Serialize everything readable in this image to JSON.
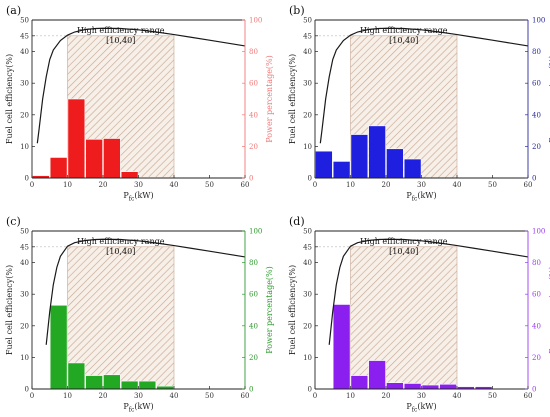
{
  "chart_data": [
    {
      "type": "bar+line",
      "panel_label": "(a)",
      "xlabel_main": "P",
      "xlabel_sub": "fc",
      "xlabel_unit": "(kW)",
      "ylabel": "Fuel cell efficiency(%)",
      "y2label": "Power percentage(%)",
      "xlim": [
        0,
        60
      ],
      "ylim": [
        0,
        50
      ],
      "y2lim": [
        0,
        100
      ],
      "xticks": [
        "0",
        "10",
        "20",
        "30",
        "40",
        "50",
        "60"
      ],
      "yticks": [
        "0",
        "10",
        "20",
        "30",
        "40",
        "45",
        "50"
      ],
      "y2ticks": [
        "0",
        "20",
        "40",
        "60",
        "80",
        "100"
      ],
      "bar_color": "#ee1c1c",
      "axis2_color": "#f07878",
      "annotation_title": "High efficiency range",
      "annotation_range": "[10,40]",
      "shade_range": [
        10,
        40
      ],
      "efficiency_curve": {
        "x": [
          1.5,
          2,
          3,
          4,
          5,
          6,
          8,
          10,
          12,
          15,
          18,
          20,
          25,
          30,
          35,
          40,
          45,
          50,
          55,
          60
        ],
        "y": [
          11,
          15.5,
          25,
          32,
          37.5,
          40.5,
          43.5,
          45.2,
          46.2,
          47,
          47.3,
          47.4,
          47.3,
          46.9,
          46.2,
          45.4,
          44.5,
          43.6,
          42.7,
          41.8
        ]
      },
      "bars": [
        {
          "x": 2.5,
          "value": 1.5
        },
        {
          "x": 7.5,
          "value": 13
        },
        {
          "x": 12.5,
          "value": 50
        },
        {
          "x": 17.5,
          "value": 24.5
        },
        {
          "x": 22.5,
          "value": 25
        },
        {
          "x": 27.5,
          "value": 4
        },
        {
          "x": 32.5,
          "value": 0.5
        },
        {
          "x": 37.5,
          "value": 0.3
        }
      ]
    },
    {
      "type": "bar+line",
      "panel_label": "(b)",
      "xlabel_main": "P",
      "xlabel_sub": "fc",
      "xlabel_unit": "(kW)",
      "ylabel": "Fuel cell efficiency(%)",
      "y2label": "Power percentage(%)",
      "xlim": [
        0,
        60
      ],
      "ylim": [
        0,
        50
      ],
      "y2lim": [
        0,
        100
      ],
      "xticks": [
        "0",
        "10",
        "20",
        "30",
        "40",
        "50",
        "60"
      ],
      "yticks": [
        "0",
        "10",
        "20",
        "30",
        "40",
        "45",
        "50"
      ],
      "y2ticks": [
        "0",
        "20",
        "40",
        "60",
        "80",
        "100"
      ],
      "bar_color": "#1f1fe0",
      "axis2_color": "#2a2a9c",
      "annotation_title": "High efficiency range",
      "annotation_range": "[10,40]",
      "shade_range": [
        10,
        40
      ],
      "efficiency_curve": {
        "x": [
          1.5,
          2,
          3,
          4,
          5,
          6,
          8,
          10,
          12,
          15,
          18,
          20,
          25,
          30,
          35,
          40,
          45,
          50,
          55,
          60
        ],
        "y": [
          11,
          15.5,
          25,
          32,
          37.5,
          40.5,
          43.5,
          45.2,
          46.2,
          47,
          47.3,
          47.4,
          47.3,
          46.9,
          46.2,
          45.4,
          44.5,
          43.6,
          42.7,
          41.8
        ]
      },
      "bars": [
        {
          "x": 2.5,
          "value": 17
        },
        {
          "x": 7.5,
          "value": 10.5
        },
        {
          "x": 12.5,
          "value": 27.5
        },
        {
          "x": 17.5,
          "value": 33
        },
        {
          "x": 22.5,
          "value": 18.5
        },
        {
          "x": 27.5,
          "value": 12
        }
      ]
    },
    {
      "type": "bar+line",
      "panel_label": "(c)",
      "xlabel_main": "P",
      "xlabel_sub": "fc",
      "xlabel_unit": "(kW)",
      "ylabel": "Fuel cell efficiency(%)",
      "y2label": "Power percentage(%)",
      "xlim": [
        0,
        60
      ],
      "ylim": [
        0,
        50
      ],
      "y2lim": [
        0,
        100
      ],
      "xticks": [
        "0",
        "10",
        "20",
        "30",
        "40",
        "50",
        "60"
      ],
      "yticks": [
        "0",
        "10",
        "20",
        "30",
        "40",
        "45",
        "50"
      ],
      "y2ticks": [
        "0",
        "20",
        "40",
        "60",
        "80",
        "100"
      ],
      "bar_color": "#22a822",
      "axis2_color": "#2e9a2e",
      "annotation_title": "High efficiency range",
      "annotation_range": "[10,40]",
      "shade_range": [
        10,
        40
      ],
      "efficiency_curve": {
        "x": [
          4,
          5,
          6,
          7,
          8,
          10,
          12,
          15,
          18,
          20,
          25,
          30,
          35,
          40,
          45,
          50,
          55,
          60
        ],
        "y": [
          14,
          24.5,
          33,
          38.5,
          42,
          45.2,
          46.3,
          47,
          47.3,
          47.4,
          47.3,
          46.9,
          46.2,
          45.4,
          44.5,
          43.6,
          42.7,
          41.8
        ]
      },
      "bars": [
        {
          "x": 7.5,
          "value": 53
        },
        {
          "x": 12.5,
          "value": 16.5
        },
        {
          "x": 17.5,
          "value": 8.5
        },
        {
          "x": 22.5,
          "value": 9
        },
        {
          "x": 27.5,
          "value": 5
        },
        {
          "x": 32.5,
          "value": 5
        },
        {
          "x": 37.5,
          "value": 1.8
        },
        {
          "x": 42.5,
          "value": 0.5
        }
      ]
    },
    {
      "type": "bar+line",
      "panel_label": "(d)",
      "xlabel_main": "P",
      "xlabel_sub": "fc",
      "xlabel_unit": "(kW)",
      "ylabel": "Fuel cell efficiency(%)",
      "y2label": "Power percentage(%)",
      "xlim": [
        0,
        60
      ],
      "ylim": [
        0,
        50
      ],
      "y2lim": [
        0,
        100
      ],
      "xticks": [
        "0",
        "10",
        "20",
        "30",
        "40",
        "50",
        "60"
      ],
      "yticks": [
        "0",
        "10",
        "20",
        "30",
        "40",
        "45",
        "50"
      ],
      "y2ticks": [
        "0",
        "20",
        "40",
        "60",
        "80",
        "100"
      ],
      "bar_color": "#8b1ff0",
      "axis2_color": "#9b3cf0",
      "annotation_title": "High efficiency range",
      "annotation_range": "[10,40]",
      "shade_range": [
        10,
        40
      ],
      "efficiency_curve": {
        "x": [
          4,
          5,
          6,
          7,
          8,
          10,
          12,
          15,
          18,
          20,
          25,
          30,
          35,
          40,
          45,
          50,
          55,
          60
        ],
        "y": [
          14,
          24.5,
          33,
          38.5,
          42,
          45.2,
          46.3,
          47,
          47.3,
          47.4,
          47.3,
          46.9,
          46.2,
          45.4,
          44.5,
          43.6,
          42.7,
          41.8
        ]
      },
      "bars": [
        {
          "x": 7.5,
          "value": 53.5
        },
        {
          "x": 12.5,
          "value": 8.5
        },
        {
          "x": 17.5,
          "value": 18
        },
        {
          "x": 22.5,
          "value": 4
        },
        {
          "x": 27.5,
          "value": 3.5
        },
        {
          "x": 32.5,
          "value": 2.5
        },
        {
          "x": 37.5,
          "value": 3
        },
        {
          "x": 42.5,
          "value": 1.5
        },
        {
          "x": 47.5,
          "value": 1.5
        }
      ]
    }
  ]
}
